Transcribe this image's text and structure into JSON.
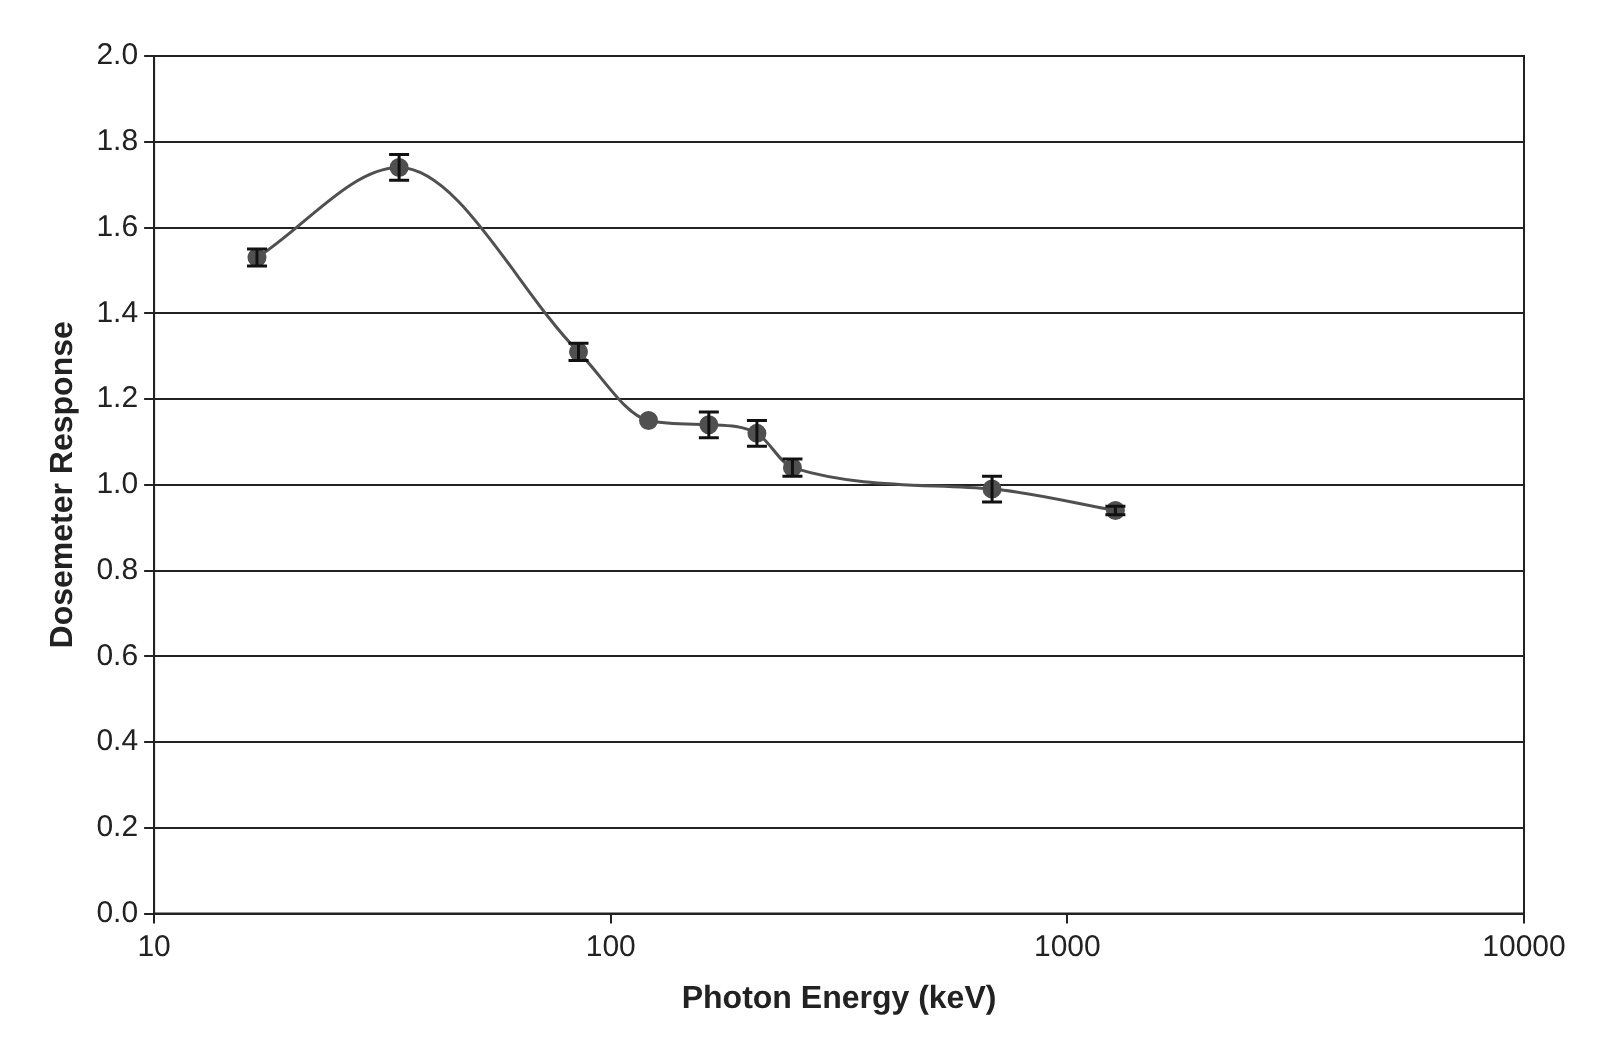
{
  "chart_data": {
    "type": "line",
    "xlabel": "Photon Energy (keV)",
    "ylabel": "Dosemeter Response",
    "x": [
      16.8,
      34.4,
      85,
      121,
      164,
      209,
      250,
      684,
      1274
    ],
    "series": [
      {
        "color": "#505050",
        "values": [
          1.53,
          1.74,
          1.31,
          1.15,
          1.14,
          1.12,
          1.04,
          0.99,
          0.94
        ],
        "errors": [
          0.02,
          0.03,
          0.02,
          null,
          0.03,
          0.03,
          0.02,
          0.03,
          0.01
        ]
      }
    ],
    "log": "x",
    "xlim": [
      10,
      10000
    ],
    "xticks": [
      10,
      100,
      1000,
      10000
    ],
    "ylim": [
      0,
      2
    ],
    "yticks": [
      {
        "value": 0,
        "label": "0.0"
      },
      {
        "value": 0.2,
        "label": "0.2"
      },
      {
        "value": 0.4,
        "label": "0.4"
      },
      {
        "value": 0.6,
        "label": "0.6"
      },
      {
        "value": 0.8,
        "label": "0.8"
      },
      {
        "value": 1,
        "label": "1.0"
      },
      {
        "value": 1.2,
        "label": "1.2"
      },
      {
        "value": 1.4,
        "label": "1.4"
      },
      {
        "value": 1.6,
        "label": "1.6"
      },
      {
        "value": 1.8,
        "label": "1.8"
      },
      {
        "value": 2,
        "label": "2.0"
      }
    ],
    "grid": "y",
    "legend": false,
    "marker": "circle",
    "line_style": "solid"
  }
}
